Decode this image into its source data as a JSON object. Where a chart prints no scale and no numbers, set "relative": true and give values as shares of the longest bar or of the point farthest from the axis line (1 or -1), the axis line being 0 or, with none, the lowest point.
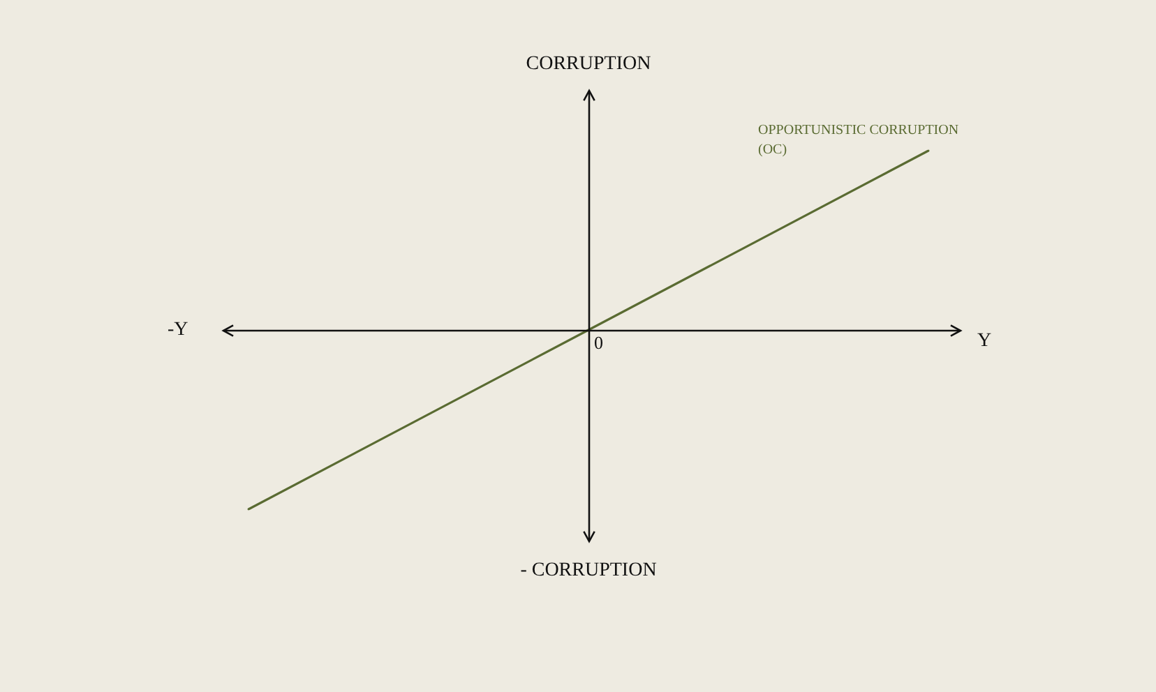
{
  "chart_data": {
    "type": "line",
    "relative": true,
    "categories": [
      null,
      null,
      null
    ],
    "series": [
      {
        "name": "OPPORTUNISTIC CORRUPTION (OC)",
        "color": "#5a6b32",
        "values": [
          -1,
          0,
          1
        ]
      }
    ],
    "annotations": [
      "CORRUPTION",
      "- CORRUPTION",
      "-Y",
      "Y",
      "0"
    ],
    "legend": false,
    "marker": "none",
    "line_style": "solid"
  }
}
